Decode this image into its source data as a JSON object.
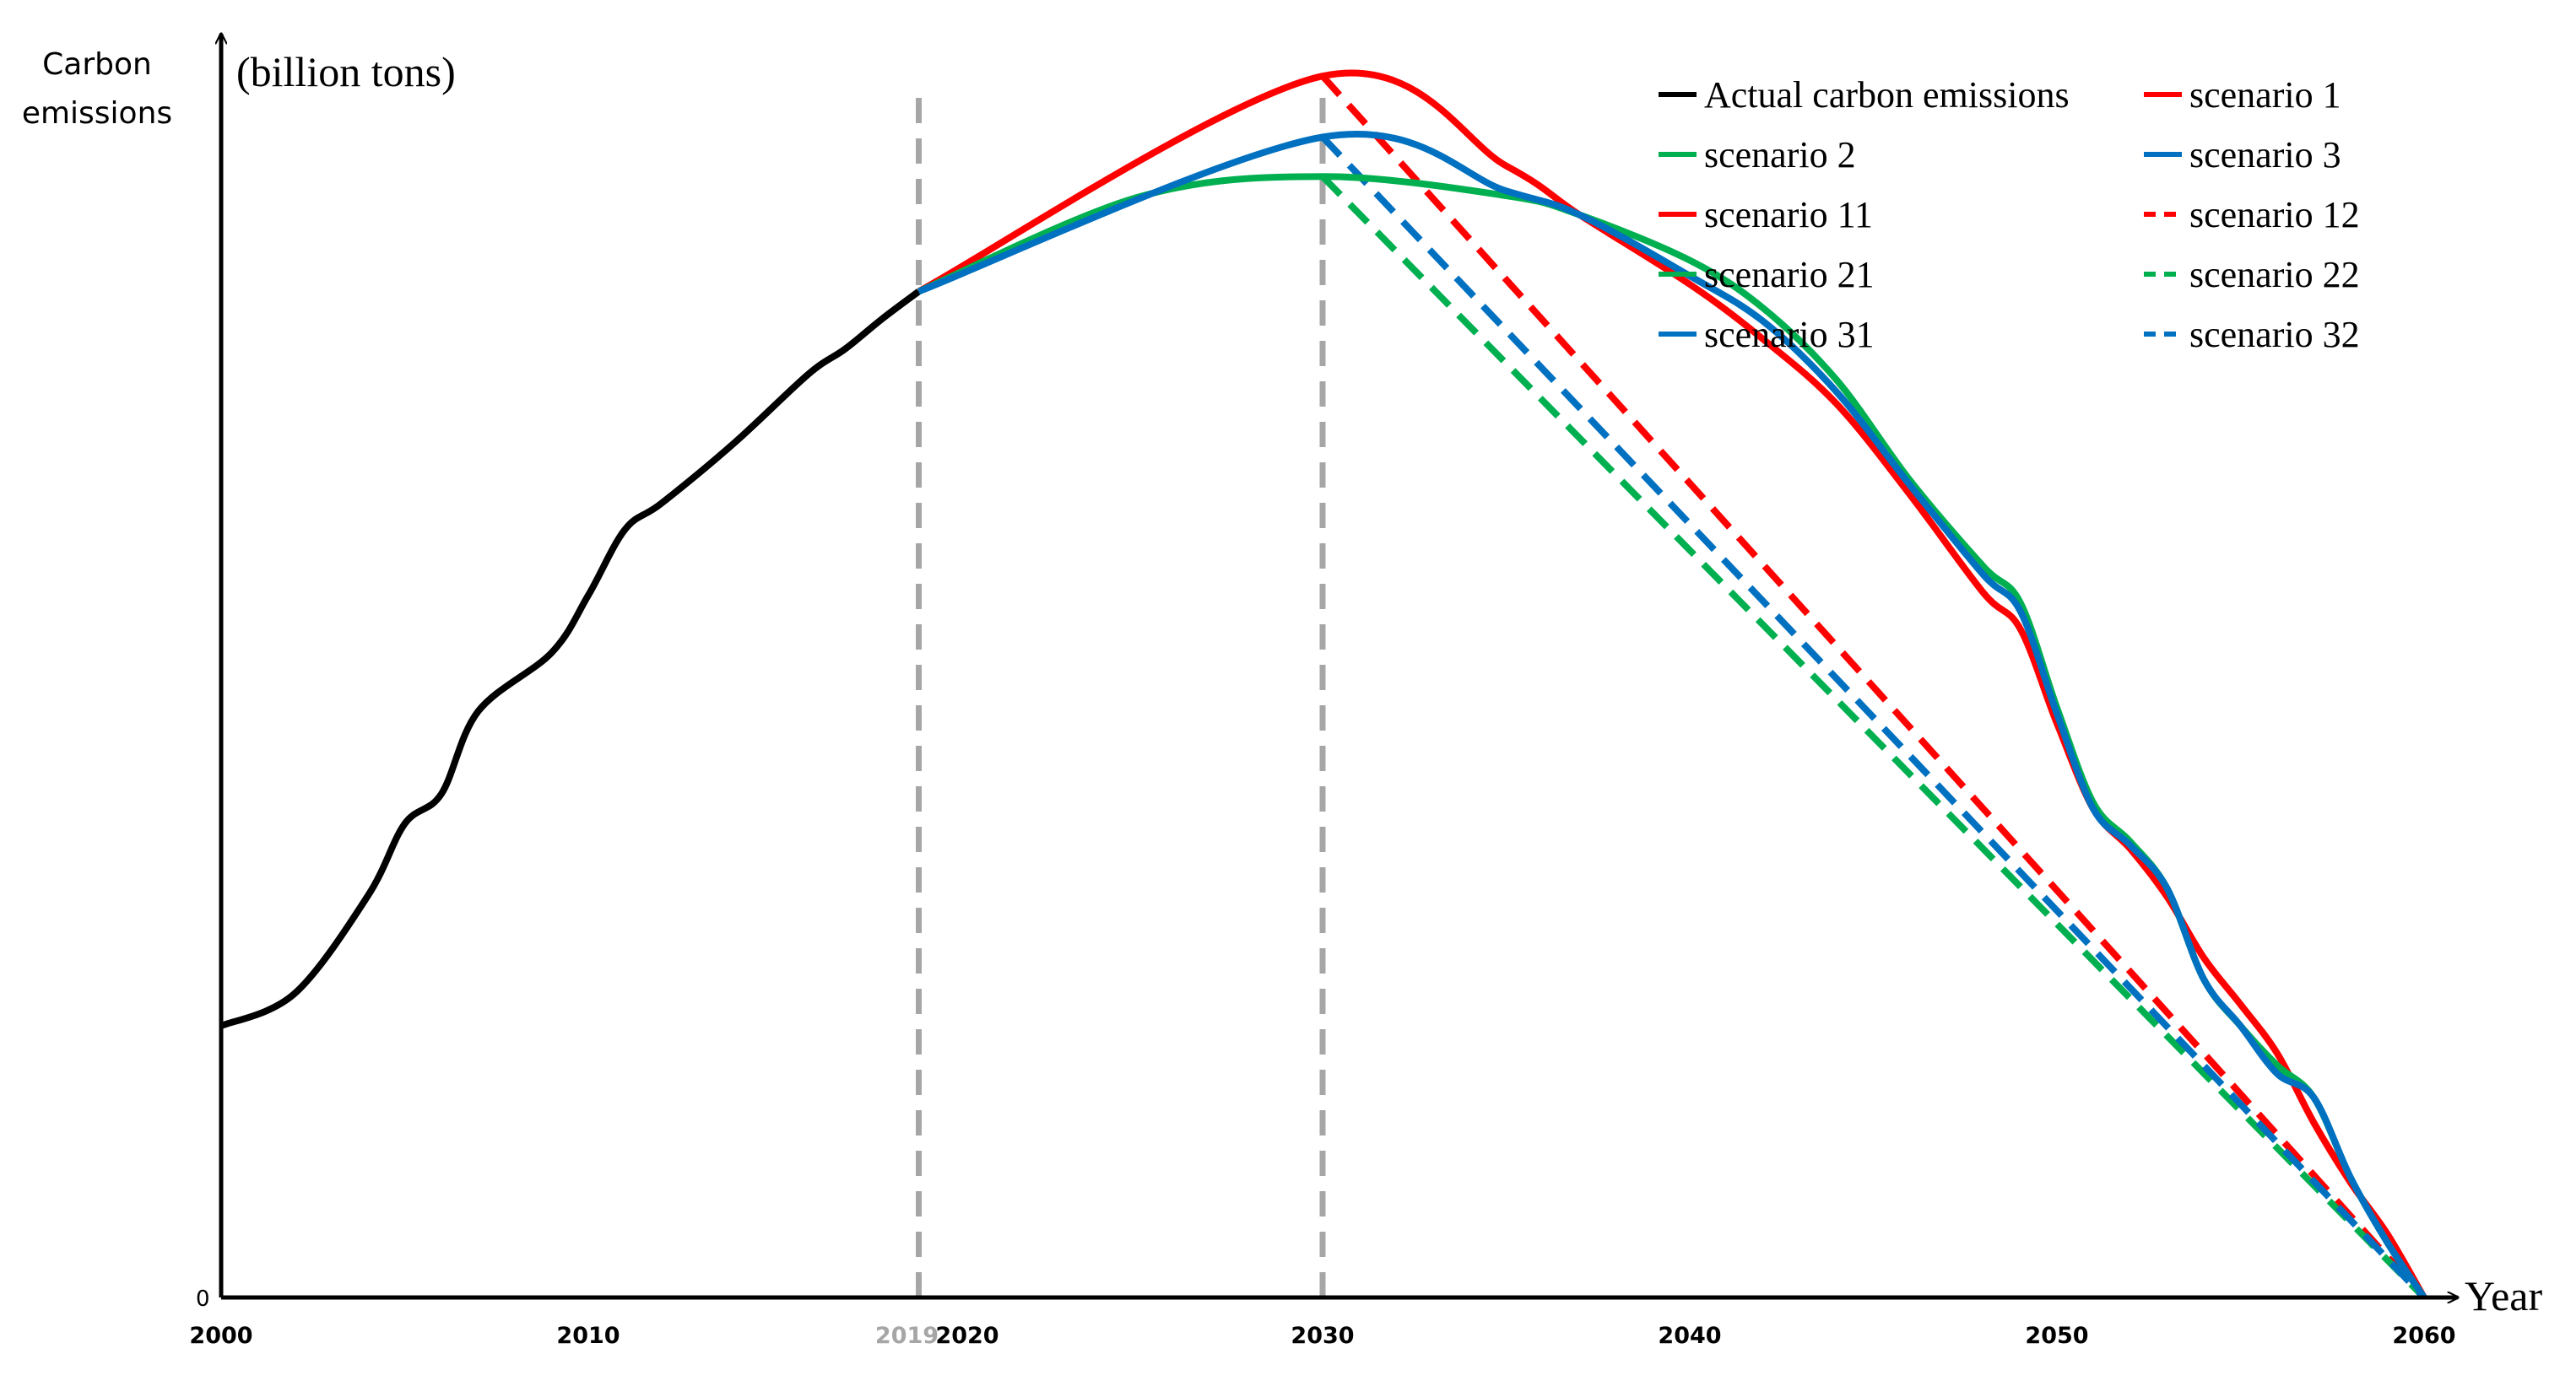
{
  "chart_data": {
    "type": "line",
    "title": "",
    "ylabel_lines": [
      "Carbon",
      "emissions"
    ],
    "yunit": "(billion tons)",
    "xlabel": "Year",
    "y_zero_label": "0",
    "xlim": [
      2000,
      2060
    ],
    "ylim": [
      0,
      100
    ],
    "x_ticks": [
      {
        "value": 2000,
        "label": "2000"
      },
      {
        "value": 2010,
        "label": "2010"
      },
      {
        "value": 2019,
        "label": "2019",
        "muted": true
      },
      {
        "value": 2020,
        "label": "2020"
      },
      {
        "value": 2030,
        "label": "2030"
      },
      {
        "value": 2040,
        "label": "2040"
      },
      {
        "value": 2050,
        "label": "2050"
      },
      {
        "value": 2060,
        "label": "2060"
      }
    ],
    "reference_lines": [
      {
        "name": "ref-line-2019",
        "x": 2019,
        "style": "dashed",
        "color": "#a6a6a6"
      },
      {
        "name": "ref-line-2030",
        "x": 2030,
        "style": "dashed",
        "color": "#a6a6a6"
      }
    ],
    "series": [
      {
        "name": "Actual carbon emissions",
        "color": "#000000",
        "dash": false,
        "x": [
          2000,
          2002,
          2004,
          2005,
          2006,
          2007,
          2009,
          2010,
          2011,
          2012,
          2014,
          2016,
          2017,
          2018,
          2019
        ],
        "y": [
          22.7,
          25.4,
          33.6,
          39.6,
          42.1,
          49.0,
          53.9,
          58.7,
          64.2,
          66.4,
          71.5,
          77.2,
          79.3,
          81.8,
          84.1
        ]
      },
      {
        "name": "scenario 1",
        "color": "#ff0000",
        "dash": false,
        "x": [
          2019,
          2030,
          2035,
          2037,
          2040,
          2042,
          2044,
          2046,
          2048,
          2049,
          2050,
          2051,
          2052,
          2053,
          2054,
          2055,
          2056,
          2057,
          2058,
          2059,
          2060
        ],
        "y": [
          84.1,
          102.1,
          94.6,
          90.5,
          84.7,
          80.1,
          74.7,
          67.1,
          58.9,
          55.9,
          48.0,
          40.8,
          37.5,
          33.5,
          28.4,
          24.5,
          20.4,
          14.6,
          9.6,
          5.3,
          0
        ]
      },
      {
        "name": "scenario 2",
        "color": "#00b050",
        "dash": false,
        "x": [
          2019,
          2025,
          2030,
          2035,
          2037,
          2040,
          2042,
          2044,
          2046,
          2048,
          2049,
          2050,
          2051,
          2052,
          2053,
          2054,
          2055,
          2056,
          2057,
          2058,
          2059,
          2060
        ],
        "y": [
          84.1,
          92.0,
          93.7,
          92.1,
          90.5,
          86.7,
          82.7,
          76.7,
          68.3,
          61.1,
          58.1,
          49.3,
          41.3,
          38.1,
          34.2,
          26.6,
          22.7,
          19.4,
          16.7,
          10.0,
          4.6,
          0
        ]
      },
      {
        "name": "scenario 3",
        "color": "#0070c0",
        "dash": false,
        "x": [
          2019,
          2030,
          2035,
          2037,
          2040,
          2042,
          2044,
          2046,
          2048,
          2049,
          2050,
          2051,
          2052,
          2053,
          2054,
          2055,
          2056,
          2057,
          2058,
          2059,
          2060
        ],
        "y": [
          84.1,
          97.0,
          92.5,
          90.5,
          85.4,
          81.6,
          75.7,
          67.9,
          60.4,
          57.4,
          48.8,
          40.8,
          37.8,
          34.2,
          26.6,
          22.7,
          18.7,
          16.7,
          10.0,
          4.6,
          0
        ]
      },
      {
        "name": "scenario 11",
        "color": "#ff0000",
        "dash": false,
        "x": [],
        "y": []
      },
      {
        "name": "scenario 12",
        "color": "#ff0000",
        "dash": true,
        "x": [
          2030,
          2060
        ],
        "y": [
          102.1,
          0
        ]
      },
      {
        "name": "scenario 21",
        "color": "#00b050",
        "dash": false,
        "x": [],
        "y": []
      },
      {
        "name": "scenario 22",
        "color": "#00b050",
        "dash": true,
        "x": [
          2030,
          2060
        ],
        "y": [
          93.7,
          0
        ]
      },
      {
        "name": "scenario 31",
        "color": "#0070c0",
        "dash": false,
        "x": [],
        "y": []
      },
      {
        "name": "scenario 32",
        "color": "#0070c0",
        "dash": true,
        "x": [
          2030,
          2060
        ],
        "y": [
          97.0,
          0
        ]
      }
    ],
    "legend": {
      "position": "top-right",
      "columns": 2,
      "entries": [
        {
          "label": "Actual carbon emissions",
          "color": "#000000",
          "dash": false
        },
        {
          "label": "scenario 1",
          "color": "#ff0000",
          "dash": false
        },
        {
          "label": "scenario 2",
          "color": "#00b050",
          "dash": false
        },
        {
          "label": "scenario 3",
          "color": "#0070c0",
          "dash": false
        },
        {
          "label": "scenario 11",
          "color": "#ff0000",
          "dash": false
        },
        {
          "label": "scenario 12",
          "color": "#ff0000",
          "dash": true
        },
        {
          "label": "scenario 21",
          "color": "#00b050",
          "dash": false
        },
        {
          "label": "scenario 22",
          "color": "#00b050",
          "dash": true
        },
        {
          "label": "scenario 31",
          "color": "#0070c0",
          "dash": false
        },
        {
          "label": "scenario 32",
          "color": "#0070c0",
          "dash": true
        }
      ]
    }
  }
}
